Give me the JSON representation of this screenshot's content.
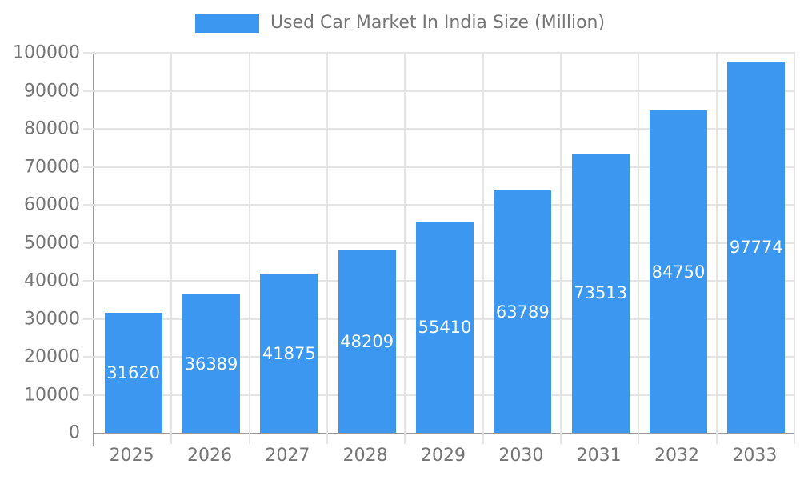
{
  "legend": {
    "label": "Used Car Market In India Size (Million)"
  },
  "colors": {
    "bar": "#3B97EF",
    "grid": "#E5E5E5",
    "axis": "#999999",
    "text": "#757575",
    "bar_label": "#FFFFFF",
    "background": "#FFFFFF"
  },
  "chart_data": {
    "type": "bar",
    "title": "Used Car Market In India Size (Million)",
    "series_name": "Used Car Market In India Size (Million)",
    "categories": [
      "2025",
      "2026",
      "2027",
      "2028",
      "2029",
      "2030",
      "2031",
      "2032",
      "2033"
    ],
    "values": [
      31620,
      36389,
      41875,
      48209,
      55410,
      63789,
      73513,
      84750,
      97774
    ],
    "xlabel": "",
    "ylabel": "",
    "ylim": [
      0,
      100000
    ],
    "ytick_step": 10000,
    "ytick_labels": [
      "0",
      "10000",
      "20000",
      "30000",
      "40000",
      "50000",
      "60000",
      "70000",
      "80000",
      "90000",
      "100000"
    ],
    "grid": true,
    "vertical_gridlines": true,
    "legend_position": "top-center",
    "value_labels": "inside-center"
  }
}
